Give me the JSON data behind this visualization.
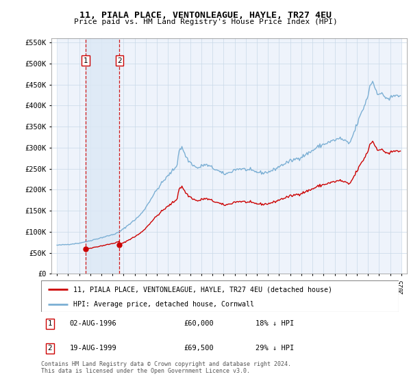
{
  "title": "11, PIALA PLACE, VENTONLEAGUE, HAYLE, TR27 4EU",
  "subtitle": "Price paid vs. HM Land Registry's House Price Index (HPI)",
  "red_label": "11, PIALA PLACE, VENTONLEAGUE, HAYLE, TR27 4EU (detached house)",
  "blue_label": "HPI: Average price, detached house, Cornwall",
  "footer": "Contains HM Land Registry data © Crown copyright and database right 2024.\nThis data is licensed under the Open Government Licence v3.0.",
  "transactions": [
    {
      "num": 1,
      "date": "02-AUG-1996",
      "price": 60000,
      "hpi_pct": "18% ↓ HPI",
      "year": 1996.58
    },
    {
      "num": 2,
      "date": "19-AUG-1999",
      "price": 69500,
      "hpi_pct": "29% ↓ HPI",
      "year": 1999.63
    }
  ],
  "hpi_color": "#7bafd4",
  "price_color": "#cc0000",
  "vline_color": "#cc0000",
  "shade_color": "#dce8f5",
  "ylim": [
    0,
    560000
  ],
  "xlim_left": 1993.5,
  "xlim_right": 2025.5,
  "yticks": [
    0,
    50000,
    100000,
    150000,
    200000,
    250000,
    300000,
    350000,
    400000,
    450000,
    500000,
    550000
  ],
  "ytick_labels": [
    "£0",
    "£50K",
    "£100K",
    "£150K",
    "£200K",
    "£250K",
    "£300K",
    "£350K",
    "£400K",
    "£450K",
    "£500K",
    "£550K"
  ],
  "xtick_years": [
    1994,
    1995,
    1996,
    1997,
    1998,
    1999,
    2000,
    2001,
    2002,
    2003,
    2004,
    2005,
    2006,
    2007,
    2008,
    2009,
    2010,
    2011,
    2012,
    2013,
    2014,
    2015,
    2016,
    2017,
    2018,
    2019,
    2020,
    2021,
    2022,
    2023,
    2024,
    2025
  ]
}
